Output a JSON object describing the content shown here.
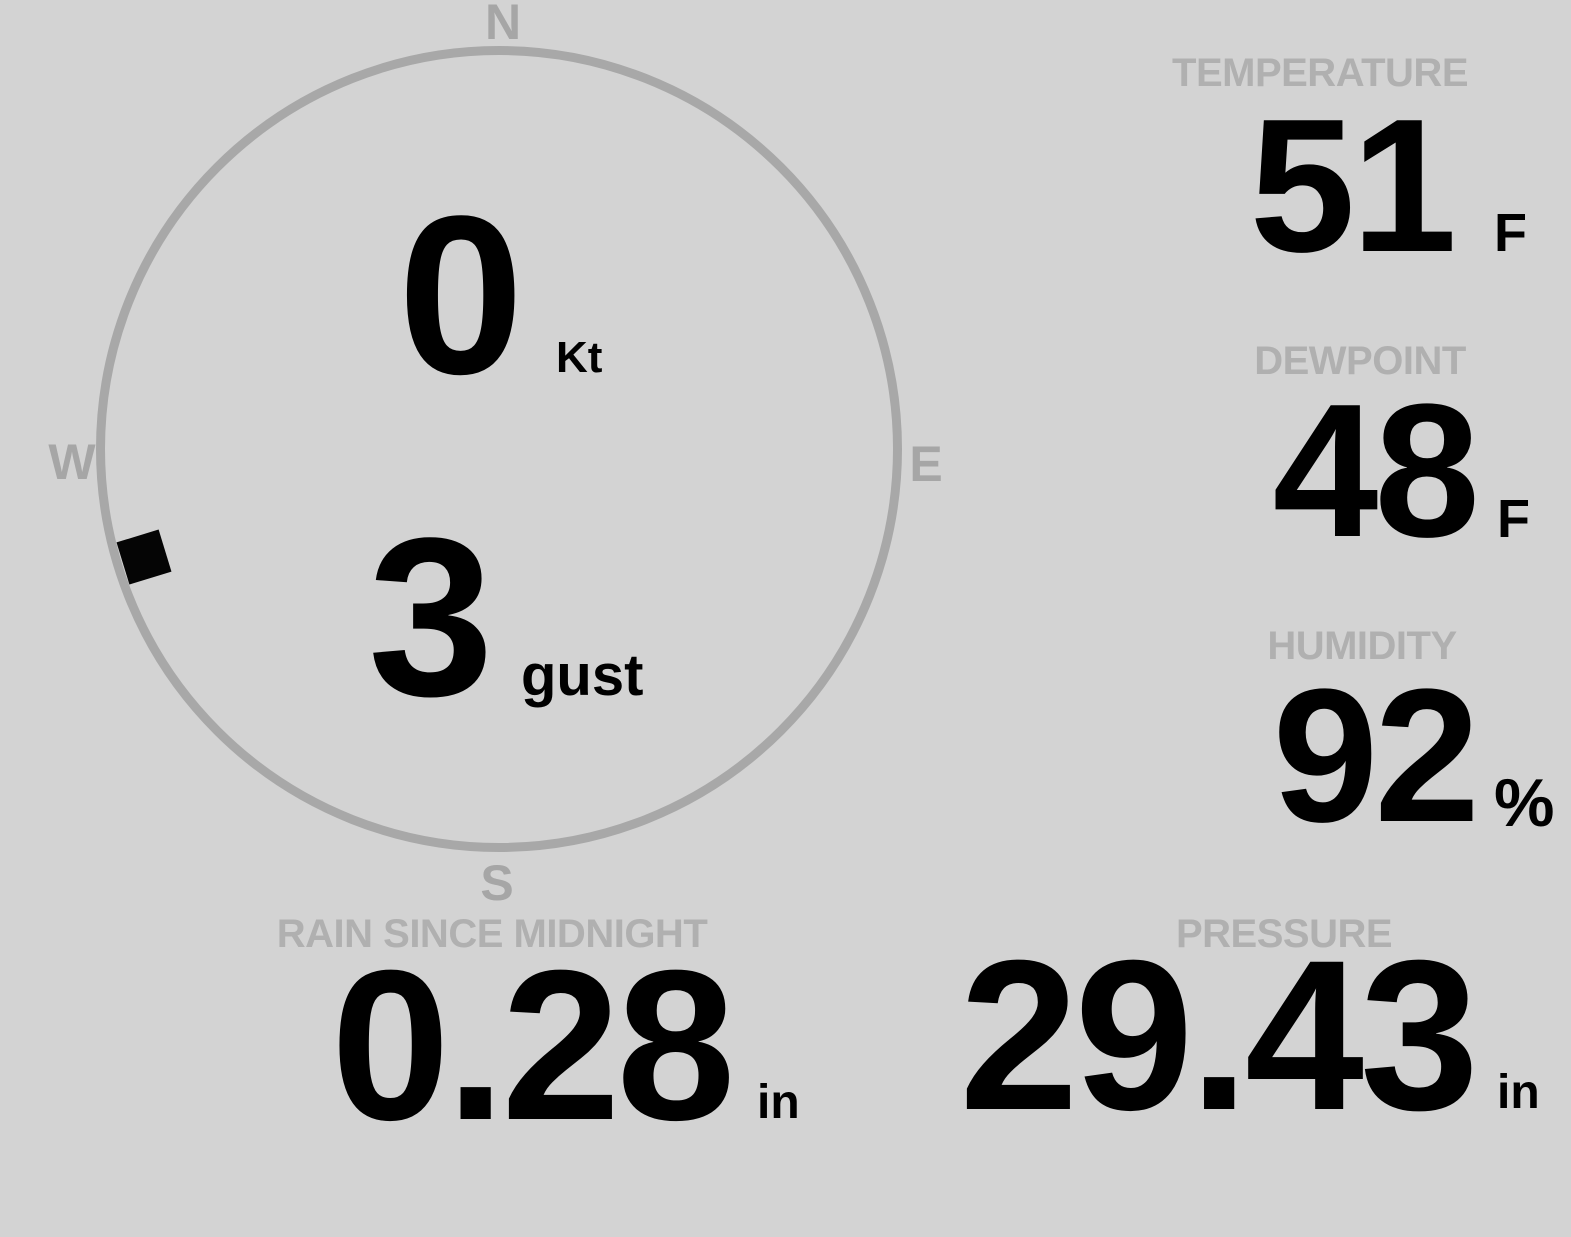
{
  "colors": {
    "background": "#d3d3d3",
    "compass_gray": "#a8a8a8",
    "label_gray": "#b0b0b0",
    "value_black": "#000000"
  },
  "wind": {
    "compass": {
      "north": "N",
      "east": "E",
      "south": "S",
      "west": "W"
    },
    "speed": {
      "value": "0",
      "unit": "Kt"
    },
    "gust": {
      "value": "3",
      "unit": "gust"
    },
    "direction": {
      "bearing_deg": 253,
      "approx_cardinal": "WSW"
    }
  },
  "metrics": {
    "temperature": {
      "label": "TEMPERATURE",
      "value": "51",
      "unit": "F"
    },
    "dewpoint": {
      "label": "DEWPOINT",
      "value": "48",
      "unit": "F"
    },
    "humidity": {
      "label": "HUMIDITY",
      "value": "92",
      "unit": "%"
    },
    "rain_since_midnight": {
      "label": "RAIN SINCE MIDNIGHT",
      "value": "0.28",
      "unit": "in"
    },
    "pressure": {
      "label": "PRESSURE",
      "value": "29.43",
      "unit": "in"
    }
  }
}
